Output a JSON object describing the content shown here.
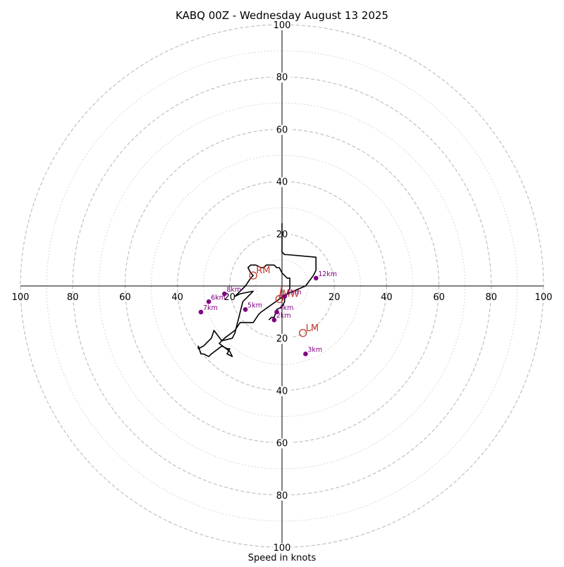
{
  "chart_data": {
    "type": "hodograph",
    "title": "KABQ 00Z - Wednesday August 13 2025",
    "xlabel": "Speed in knots",
    "range": [
      -100,
      100
    ],
    "ring_values_major": [
      20,
      40,
      60,
      80,
      100
    ],
    "ring_values_minor": [
      10,
      30,
      50,
      70,
      90
    ],
    "tick_labels": {
      "x_left": [
        "100",
        "80",
        "60",
        "40",
        "20"
      ],
      "x_right": [
        "20",
        "40",
        "60",
        "80",
        "100"
      ],
      "y_top": [
        "100",
        "80",
        "60",
        "40",
        "20"
      ],
      "y_bottom": [
        "20",
        "40",
        "60",
        "80",
        "100"
      ]
    },
    "grid": true,
    "line_color": "#000000",
    "marker_color": "#800080",
    "storm_color": "#c0392b",
    "trace": [
      [
        0,
        24
      ],
      [
        0,
        15
      ],
      [
        0,
        13
      ],
      [
        1,
        12
      ],
      [
        2,
        12
      ],
      [
        13,
        11
      ],
      [
        13,
        6
      ],
      [
        12,
        4
      ],
      [
        9,
        0
      ],
      [
        2,
        -3
      ],
      [
        -1,
        -5
      ],
      [
        -8,
        -10
      ],
      [
        -9,
        -11
      ],
      [
        -11,
        -14
      ],
      [
        -16,
        -14
      ],
      [
        -18,
        -17
      ],
      [
        -22,
        -20
      ],
      [
        -24,
        -22
      ],
      [
        -20,
        -25
      ],
      [
        -19,
        -27
      ],
      [
        -21,
        -26
      ],
      [
        -20,
        -24
      ],
      [
        -21,
        -24
      ],
      [
        -23,
        -23
      ],
      [
        -23,
        -23
      ],
      [
        -27,
        -26
      ],
      [
        -28,
        -27
      ],
      [
        -30,
        -26
      ],
      [
        -31,
        -26
      ],
      [
        -32,
        -23
      ],
      [
        -32,
        -24
      ],
      [
        -30,
        -23
      ],
      [
        -29,
        -22
      ],
      [
        -27,
        -20
      ],
      [
        -26,
        -17
      ],
      [
        -23,
        -21
      ],
      [
        -19,
        -20
      ],
      [
        -18,
        -18
      ],
      [
        -15,
        -6
      ],
      [
        -11,
        -2
      ],
      [
        -16,
        -3
      ],
      [
        -18,
        -4
      ],
      [
        -14,
        0
      ],
      [
        -12,
        3
      ],
      [
        -11,
        4
      ],
      [
        -12,
        5
      ],
      [
        -13,
        7
      ],
      [
        -12,
        8
      ],
      [
        -10,
        8
      ],
      [
        -8,
        7
      ],
      [
        -7,
        7
      ],
      [
        -6,
        8
      ],
      [
        -4,
        8
      ],
      [
        -3,
        8
      ],
      [
        -2,
        7
      ],
      [
        -1,
        7
      ],
      [
        0,
        5
      ],
      [
        2,
        3
      ],
      [
        3,
        3
      ],
      [
        3,
        2
      ],
      [
        3,
        -1
      ],
      [
        2,
        -3
      ],
      [
        1,
        -5
      ],
      [
        1,
        -6
      ],
      [
        0,
        -8
      ],
      [
        -2,
        -9
      ],
      [
        -3,
        -12
      ],
      [
        -4,
        -12
      ],
      [
        -5,
        -13
      ]
    ],
    "height_markers": [
      {
        "label": "1km",
        "u": 1,
        "v": -4
      },
      {
        "label": "2km",
        "u": -3,
        "v": -13
      },
      {
        "label": "3km",
        "u": 9,
        "v": -26
      },
      {
        "label": "4km",
        "u": -2,
        "v": -10
      },
      {
        "label": "5km",
        "u": -14,
        "v": -9
      },
      {
        "label": "6km",
        "u": -28,
        "v": -6
      },
      {
        "label": "7km",
        "u": -31,
        "v": -10
      },
      {
        "label": "8km",
        "u": -22,
        "v": -3
      },
      {
        "label": "12km",
        "u": 13,
        "v": 3
      }
    ],
    "storm_motion": [
      {
        "label": "RM",
        "u": -11,
        "v": 4
      },
      {
        "label": "LM",
        "u": 8,
        "v": -18
      },
      {
        "label": "MW",
        "u": -1,
        "v": -5
      }
    ]
  }
}
